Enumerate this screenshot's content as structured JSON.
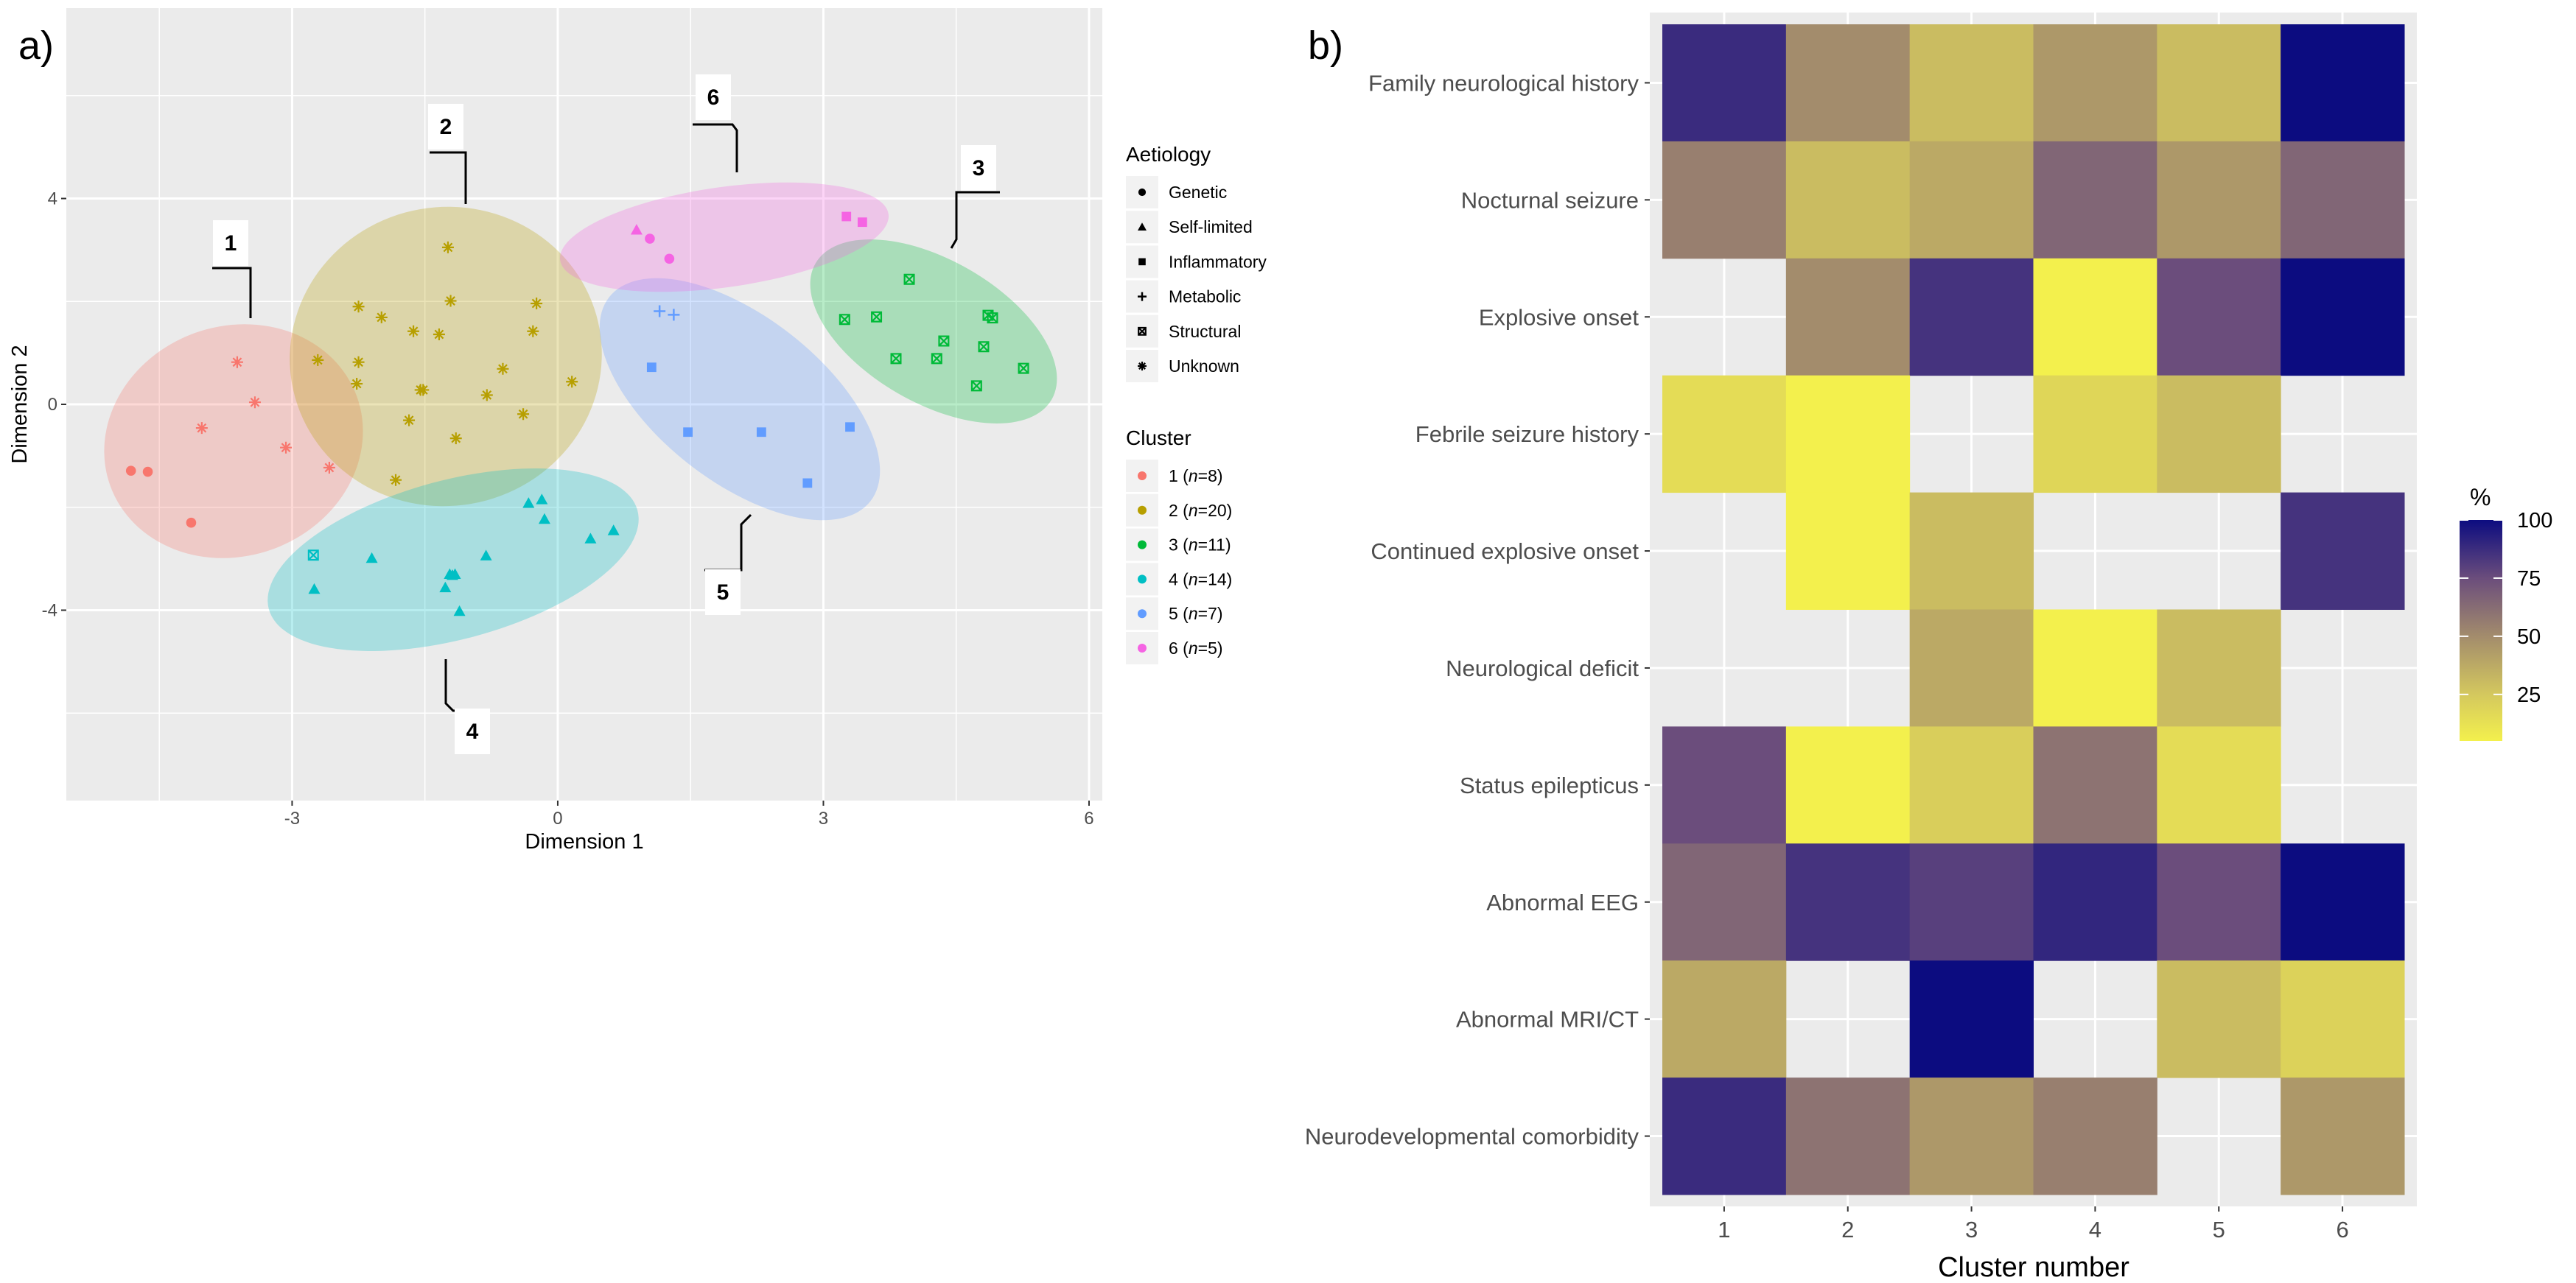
{
  "chart_data": [
    {
      "panel_label": "a)",
      "type": "scatter",
      "xlabel": "Dimension 1",
      "ylabel": "Dimension 2",
      "xlim": [
        -5.55,
        6.15
      ],
      "ylim": [
        -7.7,
        7.7
      ],
      "xticks": [
        "-3",
        "0",
        "3",
        "6"
      ],
      "xtick_values": [
        -3,
        0,
        3,
        6
      ],
      "yticks": [
        "4",
        "0",
        "-4"
      ],
      "ytick_values": [
        4,
        0,
        -4
      ],
      "grid": true,
      "legend_placement": "right",
      "legend_shape": {
        "title": "Aetiology",
        "items": [
          {
            "label": "Genetic",
            "shape": "circle"
          },
          {
            "label": "Self-limited",
            "shape": "triangle"
          },
          {
            "label": "Inflammatory",
            "shape": "square"
          },
          {
            "label": "Metabolic",
            "shape": "plus"
          },
          {
            "label": "Structural",
            "shape": "boxx"
          },
          {
            "label": "Unknown",
            "shape": "asterisk"
          }
        ]
      },
      "legend_color": {
        "title": "Cluster",
        "items": [
          {
            "id": "1",
            "n": "n",
            "count": "=8)",
            "color": "#F8766D"
          },
          {
            "id": "2",
            "n": "n",
            "count": "=20)",
            "color": "#B79F00"
          },
          {
            "id": "3",
            "n": "n",
            "count": "=11)",
            "color": "#00BA38"
          },
          {
            "id": "4",
            "n": "n",
            "count": "=14)",
            "color": "#00BFC4"
          },
          {
            "id": "5",
            "n": "n",
            "count": "=7)",
            "color": "#619CFF"
          },
          {
            "id": "6",
            "n": "n",
            "count": "=5)",
            "color": "#F564E3"
          }
        ]
      },
      "cluster_labels": [
        "1",
        "2",
        "3",
        "4",
        "5",
        "6"
      ],
      "series": [
        {
          "name": "1",
          "points": [
            {
              "x": -3.62,
              "y": 0.82,
              "shape": "asterisk"
            },
            {
              "x": -3.42,
              "y": 0.04,
              "shape": "asterisk"
            },
            {
              "x": -4.02,
              "y": -0.46,
              "shape": "asterisk"
            },
            {
              "x": -3.07,
              "y": -0.84,
              "shape": "asterisk"
            },
            {
              "x": -2.58,
              "y": -1.23,
              "shape": "asterisk"
            },
            {
              "x": -4.82,
              "y": -1.29,
              "shape": "circle"
            },
            {
              "x": -4.63,
              "y": -1.31,
              "shape": "circle"
            },
            {
              "x": -4.14,
              "y": -2.3,
              "shape": "circle"
            }
          ]
        },
        {
          "name": "2",
          "points": [
            {
              "x": -1.24,
              "y": 3.05,
              "shape": "asterisk"
            },
            {
              "x": -2.25,
              "y": 1.9,
              "shape": "asterisk"
            },
            {
              "x": -1.99,
              "y": 1.69,
              "shape": "asterisk"
            },
            {
              "x": -1.21,
              "y": 2.01,
              "shape": "asterisk"
            },
            {
              "x": -0.24,
              "y": 1.96,
              "shape": "asterisk"
            },
            {
              "x": -1.63,
              "y": 1.42,
              "shape": "asterisk"
            },
            {
              "x": -1.34,
              "y": 1.36,
              "shape": "asterisk"
            },
            {
              "x": -0.28,
              "y": 1.42,
              "shape": "asterisk"
            },
            {
              "x": -2.71,
              "y": 0.86,
              "shape": "asterisk"
            },
            {
              "x": -2.25,
              "y": 0.82,
              "shape": "asterisk"
            },
            {
              "x": -0.62,
              "y": 0.69,
              "shape": "asterisk"
            },
            {
              "x": -2.27,
              "y": 0.4,
              "shape": "asterisk"
            },
            {
              "x": 0.16,
              "y": 0.44,
              "shape": "asterisk"
            },
            {
              "x": -1.55,
              "y": 0.28,
              "shape": "asterisk"
            },
            {
              "x": -1.52,
              "y": 0.28,
              "shape": "asterisk"
            },
            {
              "x": -0.8,
              "y": 0.18,
              "shape": "asterisk"
            },
            {
              "x": -1.68,
              "y": -0.31,
              "shape": "asterisk"
            },
            {
              "x": -0.39,
              "y": -0.19,
              "shape": "asterisk"
            },
            {
              "x": -1.15,
              "y": -0.66,
              "shape": "asterisk"
            },
            {
              "x": -1.83,
              "y": -1.47,
              "shape": "asterisk"
            }
          ]
        },
        {
          "name": "3",
          "points": [
            {
              "x": 3.97,
              "y": 2.43,
              "shape": "boxx"
            },
            {
              "x": 3.24,
              "y": 1.65,
              "shape": "boxx"
            },
            {
              "x": 3.6,
              "y": 1.7,
              "shape": "boxx"
            },
            {
              "x": 4.86,
              "y": 1.73,
              "shape": "boxx"
            },
            {
              "x": 4.91,
              "y": 1.68,
              "shape": "boxx"
            },
            {
              "x": 4.36,
              "y": 1.23,
              "shape": "boxx"
            },
            {
              "x": 4.81,
              "y": 1.12,
              "shape": "boxx"
            },
            {
              "x": 3.82,
              "y": 0.89,
              "shape": "boxx"
            },
            {
              "x": 4.28,
              "y": 0.89,
              "shape": "boxx"
            },
            {
              "x": 5.26,
              "y": 0.7,
              "shape": "boxx"
            },
            {
              "x": 4.73,
              "y": 0.36,
              "shape": "boxx"
            }
          ]
        },
        {
          "name": "4",
          "points": [
            {
              "x": -2.76,
              "y": -2.93,
              "shape": "boxx"
            },
            {
              "x": -2.75,
              "y": -3.59,
              "shape": "triangle"
            },
            {
              "x": -2.1,
              "y": -2.99,
              "shape": "triangle"
            },
            {
              "x": -1.27,
              "y": -3.56,
              "shape": "triangle"
            },
            {
              "x": -1.22,
              "y": -3.3,
              "shape": "triangle"
            },
            {
              "x": -1.19,
              "y": -3.32,
              "shape": "triangle"
            },
            {
              "x": -1.16,
              "y": -3.3,
              "shape": "triangle"
            },
            {
              "x": -1.11,
              "y": -4.02,
              "shape": "triangle"
            },
            {
              "x": -0.81,
              "y": -2.94,
              "shape": "triangle"
            },
            {
              "x": -0.33,
              "y": -1.92,
              "shape": "triangle"
            },
            {
              "x": -0.18,
              "y": -1.85,
              "shape": "triangle"
            },
            {
              "x": -0.15,
              "y": -2.23,
              "shape": "triangle"
            },
            {
              "x": 0.37,
              "y": -2.61,
              "shape": "triangle"
            },
            {
              "x": 0.63,
              "y": -2.45,
              "shape": "triangle"
            }
          ]
        },
        {
          "name": "5",
          "points": [
            {
              "x": 1.15,
              "y": 1.81,
              "shape": "plus"
            },
            {
              "x": 1.31,
              "y": 1.74,
              "shape": "plus"
            },
            {
              "x": 1.06,
              "y": 0.72,
              "shape": "square"
            },
            {
              "x": 1.47,
              "y": -0.54,
              "shape": "square"
            },
            {
              "x": 2.3,
              "y": -0.54,
              "shape": "square"
            },
            {
              "x": 3.3,
              "y": -0.44,
              "shape": "square"
            },
            {
              "x": 2.82,
              "y": -1.53,
              "shape": "square"
            }
          ]
        },
        {
          "name": "6",
          "points": [
            {
              "x": 0.89,
              "y": 3.39,
              "shape": "triangle"
            },
            {
              "x": 1.04,
              "y": 3.22,
              "shape": "circle"
            },
            {
              "x": 1.26,
              "y": 2.83,
              "shape": "circle"
            },
            {
              "x": 3.26,
              "y": 3.65,
              "shape": "square"
            },
            {
              "x": 3.44,
              "y": 3.54,
              "shape": "square"
            }
          ]
        }
      ]
    },
    {
      "panel_label": "b)",
      "type": "heatmap",
      "xlabel": "Cluster number",
      "ylabel": "",
      "categories": [
        "1",
        "2",
        "3",
        "4",
        "5",
        "6"
      ],
      "rows": [
        "Family neurological history",
        "Nocturnal seizure",
        "Explosive onset",
        "Febrile seizure history",
        "Continued explosive onset",
        "Neurological deficit",
        "Status epilepticus",
        "Abnormal EEG",
        "Abnormal MRI/CT",
        "Neurodevelopmental comorbidity"
      ],
      "values": [
        [
          88,
          50,
          30,
          45,
          30,
          100
        ],
        [
          55,
          30,
          38,
          65,
          45,
          65
        ],
        [
          null,
          50,
          85,
          5,
          75,
          100
        ],
        [
          15,
          5,
          null,
          18,
          30,
          null
        ],
        [
          null,
          5,
          30,
          null,
          null,
          85
        ],
        [
          null,
          null,
          38,
          5,
          30,
          null
        ],
        [
          75,
          5,
          22,
          60,
          15,
          null
        ],
        [
          65,
          85,
          80,
          90,
          75,
          100
        ],
        [
          38,
          null,
          100,
          null,
          30,
          20
        ],
        [
          88,
          60,
          45,
          55,
          null,
          45
        ]
      ],
      "colorbar": {
        "title": "%",
        "ticks": [
          "100",
          "75",
          "50",
          "25"
        ],
        "tick_values": [
          100,
          75,
          50,
          25
        ],
        "range": [
          5,
          100
        ],
        "colors": {
          "low": "#F3F04D",
          "q25": "#D4C85E",
          "mid": "#A38C6C",
          "q75": "#6B4D7C",
          "high": "#0C0C80"
        }
      },
      "missing_color": "#EBEBEB"
    }
  ]
}
